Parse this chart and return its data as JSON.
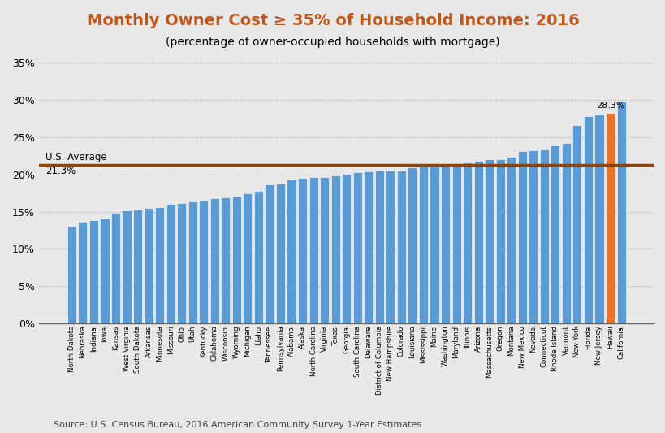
{
  "title": "Monthly Owner Cost ≥ 35% of Household Income: 2016",
  "subtitle": "(percentage of owner-occupied households with mortgage)",
  "source": "Source: U.S. Census Bureau, 2016 American Community Survey 1-Year Estimates",
  "avg_line": 21.3,
  "avg_label_line1": "U.S. Average",
  "avg_label_line2": "21.3%",
  "highlight_state": "Hawaii",
  "highlight_value": 28.3,
  "bar_color": "#5B9BD5",
  "highlight_color": "#E8732A",
  "avg_line_color": "#8B4513",
  "title_color": "#C0571A",
  "categories": [
    "North Dakota",
    "Nebraska",
    "Indiana",
    "Iowa",
    "Kansas",
    "West Virginia",
    "South Dakota",
    "Arkansas",
    "Minnesota",
    "Missouri",
    "Ohio",
    "Utah",
    "Kentucky",
    "Oklahoma",
    "Wisconsin",
    "Wyoming",
    "Michigan",
    "Idaho",
    "Tennessee",
    "Pennsylvania",
    "Alabama",
    "Alaska",
    "North Carolina",
    "Virginia",
    "Texas",
    "Georgia",
    "South Carolina",
    "Delaware",
    "District of Columbia",
    "New Hampshire",
    "Colorado",
    "Louisiana",
    "Mississippi",
    "Maine",
    "Washington",
    "Maryland",
    "Illinois",
    "Arizona",
    "Massachusetts",
    "Oregon",
    "Montana",
    "New Mexico",
    "Nevada",
    "Connecticut",
    "Rhode Island",
    "Vermont",
    "New York",
    "Florida",
    "New Jersey",
    "Hawaii",
    "California"
  ],
  "values": [
    13.0,
    13.6,
    13.9,
    14.1,
    14.8,
    15.2,
    15.3,
    15.5,
    15.6,
    16.0,
    16.2,
    16.4,
    16.5,
    16.8,
    16.9,
    17.0,
    17.5,
    17.8,
    18.7,
    18.8,
    19.3,
    19.5,
    19.6,
    19.7,
    19.9,
    20.1,
    20.3,
    20.4,
    20.5,
    20.5,
    20.5,
    21.0,
    21.1,
    21.1,
    21.3,
    21.5,
    21.6,
    21.8,
    22.0,
    22.1,
    22.4,
    23.1,
    23.3,
    23.4,
    23.9,
    24.2,
    26.6,
    27.8,
    28.1,
    28.3,
    29.8
  ],
  "ylim": [
    0,
    36
  ],
  "yticks": [
    0,
    5,
    10,
    15,
    20,
    25,
    30,
    35
  ],
  "ytick_labels": [
    "0%",
    "5%",
    "10%",
    "15%",
    "20%",
    "25%",
    "30%",
    "35%"
  ],
  "background_color": "#E8E8E8",
  "plot_bg_color": "#E8E8E8",
  "grid_color": "#AAAAAA",
  "figsize": [
    8.2,
    5.33
  ],
  "dpi": 100
}
